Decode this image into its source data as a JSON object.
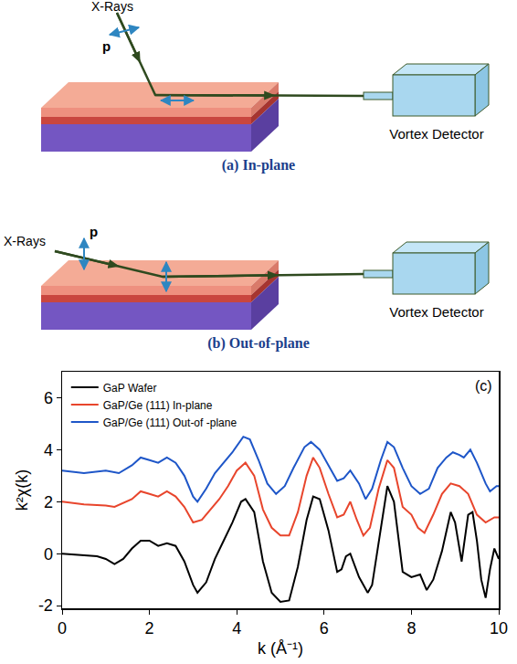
{
  "diagrams": [
    {
      "caption": "(a) In-plane",
      "source_label": "X-Rays",
      "polarization_label": "p",
      "detector_label": "Vortex Detector"
    },
    {
      "caption": "(b) Out-of-plane",
      "source_label": "X-Rays",
      "polarization_label": "p",
      "detector_label": "Vortex Detector"
    }
  ],
  "chart_data": {
    "type": "line",
    "panel_label": "(c)",
    "x_label": "k (Å⁻¹)",
    "y_label": "k²χ(k)",
    "xlim": [
      0,
      10
    ],
    "ylim": [
      -2.1,
      7
    ],
    "xticks": [
      0,
      2,
      4,
      6,
      8,
      10
    ],
    "yticks": [
      -2,
      0,
      2,
      4,
      6
    ],
    "grid": false,
    "legend": "upper left",
    "series": [
      {
        "name": "GaP Wafer",
        "color": "#000000",
        "x": [
          0,
          0.5,
          0.8,
          1.0,
          1.2,
          1.4,
          1.6,
          1.8,
          2.0,
          2.2,
          2.4,
          2.6,
          2.8,
          3.0,
          3.1,
          3.3,
          3.5,
          3.7,
          3.9,
          4.1,
          4.2,
          4.4,
          4.6,
          4.8,
          5.0,
          5.2,
          5.4,
          5.6,
          5.75,
          5.9,
          6.1,
          6.3,
          6.4,
          6.5,
          6.6,
          6.8,
          7.0,
          7.1,
          7.3,
          7.45,
          7.6,
          7.8,
          8.0,
          8.2,
          8.35,
          8.5,
          8.7,
          8.9,
          9.0,
          9.15,
          9.3,
          9.4,
          9.5,
          9.6,
          9.7,
          9.8,
          9.9,
          10.0
        ],
        "values": [
          0,
          -0.05,
          -0.1,
          -0.2,
          -0.4,
          -0.2,
          0.2,
          0.5,
          0.5,
          0.3,
          0.4,
          0.3,
          -0.3,
          -1.2,
          -1.5,
          -1.1,
          -0.2,
          0.5,
          1.2,
          2.0,
          2.1,
          1.6,
          -0.3,
          -1.5,
          -1.85,
          -1.8,
          -0.5,
          1.3,
          2.2,
          2.1,
          0.9,
          -0.7,
          -0.6,
          -0.1,
          0,
          -0.9,
          -1.5,
          -1.2,
          1.0,
          2.6,
          2.0,
          -0.7,
          -0.9,
          -0.8,
          -1.4,
          -1.0,
          0.1,
          1.6,
          1.2,
          -0.3,
          1.5,
          1.6,
          0.5,
          -1.0,
          -1.7,
          -0.6,
          0.2,
          -0.2
        ]
      },
      {
        "name": "GaP/Ge (111) In-plane",
        "color": "#e8452c",
        "x": [
          0,
          0.5,
          1.0,
          1.2,
          1.6,
          1.8,
          2.0,
          2.2,
          2.4,
          2.6,
          2.8,
          3.0,
          3.2,
          3.4,
          3.6,
          3.8,
          4.0,
          4.2,
          4.4,
          4.6,
          4.8,
          5.0,
          5.2,
          5.4,
          5.6,
          5.75,
          5.9,
          6.1,
          6.3,
          6.45,
          6.6,
          6.75,
          6.9,
          7.05,
          7.25,
          7.45,
          7.6,
          7.8,
          8.0,
          8.15,
          8.3,
          8.5,
          8.7,
          8.9,
          9.1,
          9.3,
          9.5,
          9.7,
          9.9,
          10.0
        ],
        "values": [
          2.0,
          1.9,
          1.85,
          1.8,
          2.1,
          2.4,
          2.3,
          2.2,
          2.4,
          2.2,
          1.8,
          1.2,
          1.3,
          1.7,
          2.1,
          2.6,
          3.2,
          3.5,
          3.0,
          1.7,
          1.0,
          0.7,
          0.7,
          1.6,
          3.0,
          3.7,
          3.3,
          2.3,
          1.4,
          1.5,
          2.0,
          1.3,
          0.7,
          1.0,
          2.5,
          3.6,
          3.3,
          1.8,
          1.5,
          1.0,
          0.8,
          1.5,
          2.3,
          2.7,
          2.6,
          2.3,
          1.5,
          1.2,
          1.4,
          1.4
        ]
      },
      {
        "name": "GaP/Ge (111) Out-of -plane",
        "color": "#1e56c8",
        "x": [
          0,
          0.5,
          1.0,
          1.3,
          1.6,
          1.8,
          2.0,
          2.2,
          2.4,
          2.6,
          2.8,
          3.0,
          3.1,
          3.3,
          3.5,
          3.7,
          3.9,
          4.15,
          4.3,
          4.5,
          4.7,
          4.9,
          5.1,
          5.3,
          5.55,
          5.7,
          5.9,
          6.1,
          6.3,
          6.45,
          6.6,
          6.8,
          6.95,
          7.1,
          7.3,
          7.45,
          7.6,
          7.8,
          8.0,
          8.2,
          8.4,
          8.6,
          8.8,
          8.95,
          9.1,
          9.2,
          9.35,
          9.5,
          9.7,
          9.8,
          9.95,
          10.0
        ],
        "values": [
          3.2,
          3.1,
          3.2,
          3.1,
          3.4,
          3.7,
          3.6,
          3.5,
          3.7,
          3.5,
          3.0,
          2.2,
          2.0,
          2.5,
          3.1,
          3.5,
          3.9,
          4.5,
          4.4,
          3.6,
          2.7,
          2.3,
          2.6,
          3.3,
          4.1,
          4.3,
          4.0,
          3.4,
          2.8,
          2.9,
          3.2,
          2.7,
          2.1,
          2.5,
          3.6,
          4.3,
          4.1,
          3.3,
          2.6,
          2.3,
          2.5,
          3.3,
          3.7,
          3.9,
          3.8,
          3.7,
          4.0,
          3.5,
          2.7,
          2.4,
          2.6,
          2.6
        ]
      }
    ]
  }
}
